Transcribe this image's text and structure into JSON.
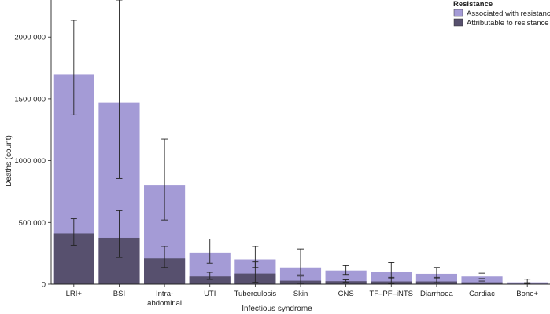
{
  "chart_data": {
    "type": "bar",
    "title": "",
    "xlabel": "Infectious syndrome",
    "ylabel": "Deaths (count)",
    "ylim": [
      0,
      2300000
    ],
    "yticks": [
      0,
      500000,
      1000000,
      1500000,
      2000000
    ],
    "ytick_labels": [
      "0",
      "500 000",
      "1000 000",
      "1500 000",
      "2000 000"
    ],
    "grid": false,
    "legend": {
      "title": "Resistance",
      "position": "top-right",
      "entries": [
        "Associated with resistance",
        "Attributable to resistance"
      ]
    },
    "categories": [
      "LRI+",
      "BSI",
      "Intra-\nabdominal",
      "UTI",
      "Tuberculosis",
      "Skin",
      "CNS",
      "TF–PF–iNTS",
      "Diarrhoea",
      "Cardiac",
      "Bone+"
    ],
    "series": [
      {
        "name": "Associated with resistance",
        "color": "#a49bd6",
        "values": [
          1700000,
          1470000,
          800000,
          255000,
          200000,
          135000,
          110000,
          100000,
          83000,
          62000,
          15000
        ],
        "lower": [
          1370000,
          855000,
          520000,
          170000,
          135000,
          75000,
          78000,
          45000,
          45000,
          45000,
          5000
        ],
        "upper": [
          2135000,
          2300000,
          1175000,
          365000,
          305000,
          285000,
          150000,
          175000,
          135000,
          88000,
          40000
        ]
      },
      {
        "name": "Attributable to resistance",
        "color": "#57506e",
        "values": [
          410000,
          375000,
          208000,
          62000,
          85000,
          28000,
          24000,
          22000,
          22000,
          15000,
          4000
        ],
        "lower": [
          315000,
          215000,
          135000,
          38000,
          15000,
          2000,
          17000,
          4000,
          12000,
          9000,
          1000
        ],
        "upper": [
          530000,
          595000,
          305000,
          95000,
          180000,
          65000,
          35000,
          55000,
          55000,
          25000,
          12000
        ]
      }
    ]
  }
}
